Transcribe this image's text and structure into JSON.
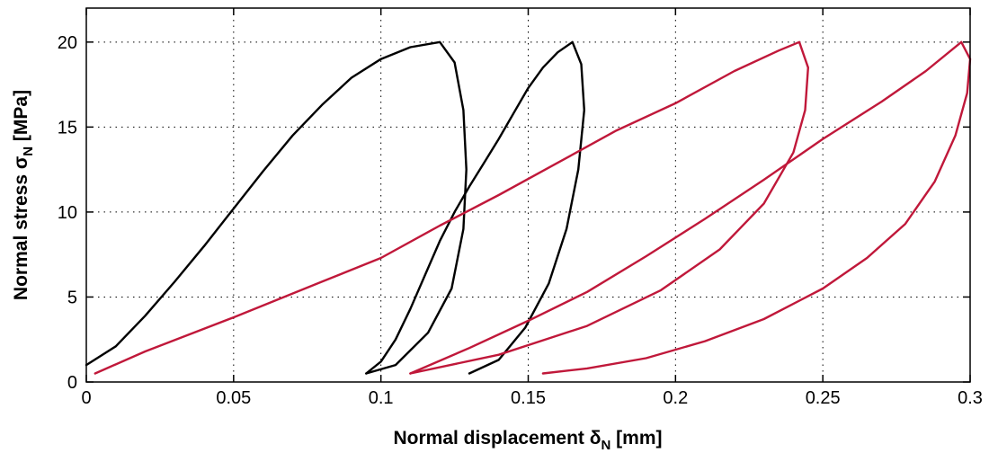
{
  "chart_data": {
    "type": "line",
    "xlabel": {
      "main": "Normal displacement δ",
      "sub": "N",
      "unit": " [mm]"
    },
    "ylabel": {
      "main": "Normal stress σ",
      "sub": "N",
      "unit": " [MPa]"
    },
    "xlim": [
      0,
      0.3
    ],
    "ylim": [
      0,
      22
    ],
    "xticks": [
      0,
      0.05,
      0.1,
      0.15,
      0.2,
      0.25,
      0.3
    ],
    "xtick_labels": [
      "0",
      "0.05",
      "0.1",
      "0.15",
      "0.2",
      "0.25",
      "0.3"
    ],
    "yticks": [
      0,
      5,
      10,
      15,
      20
    ],
    "ytick_labels": [
      "0",
      "5",
      "10",
      "15",
      "20"
    ],
    "grid": true,
    "colors": {
      "black": "#000000",
      "red": "#c0183a"
    },
    "series": [
      {
        "color": "#000000",
        "x": [
          0.0,
          0.01,
          0.02,
          0.03,
          0.04,
          0.05,
          0.06,
          0.07,
          0.08,
          0.09,
          0.1,
          0.11,
          0.12,
          0.125,
          0.128,
          0.129,
          0.128,
          0.124,
          0.116,
          0.105,
          0.095
        ],
        "y": [
          1.0,
          2.1,
          3.9,
          5.9,
          8.0,
          10.2,
          12.4,
          14.5,
          16.3,
          17.9,
          19.0,
          19.7,
          20.0,
          18.8,
          16.0,
          12.5,
          9.0,
          5.5,
          2.9,
          1.0,
          0.5
        ]
      },
      {
        "color": "#000000",
        "x": [
          0.095,
          0.1,
          0.105,
          0.11,
          0.115,
          0.12,
          0.125,
          0.13,
          0.135,
          0.14,
          0.145,
          0.15,
          0.155,
          0.16,
          0.165,
          0.168,
          0.169,
          0.167,
          0.163,
          0.157,
          0.149,
          0.14,
          0.13
        ],
        "y": [
          0.5,
          1.2,
          2.5,
          4.3,
          6.3,
          8.3,
          10.0,
          11.5,
          12.9,
          14.3,
          15.8,
          17.3,
          18.5,
          19.4,
          20.0,
          18.7,
          16.0,
          12.5,
          9.0,
          5.8,
          3.2,
          1.3,
          0.5
        ]
      },
      {
        "color": "#c0183a",
        "x": [
          0.003,
          0.02,
          0.05,
          0.08,
          0.1,
          0.12,
          0.14,
          0.16,
          0.18,
          0.2,
          0.22,
          0.235,
          0.242,
          0.245,
          0.244,
          0.24,
          0.23,
          0.215,
          0.195,
          0.17,
          0.14,
          0.11
        ],
        "y": [
          0.5,
          1.8,
          3.8,
          5.9,
          7.3,
          9.2,
          11.0,
          12.9,
          14.8,
          16.4,
          18.3,
          19.5,
          20.0,
          18.5,
          16.0,
          13.5,
          10.5,
          7.8,
          5.4,
          3.3,
          1.6,
          0.5
        ]
      },
      {
        "color": "#c0183a",
        "x": [
          0.11,
          0.13,
          0.15,
          0.17,
          0.19,
          0.21,
          0.23,
          0.25,
          0.27,
          0.285,
          0.297,
          0.3,
          0.299,
          0.295,
          0.288,
          0.278,
          0.265,
          0.25,
          0.23,
          0.21,
          0.19,
          0.17,
          0.155
        ],
        "y": [
          0.5,
          2.0,
          3.6,
          5.3,
          7.4,
          9.6,
          11.9,
          14.3,
          16.5,
          18.3,
          20.0,
          19.0,
          17.0,
          14.5,
          11.8,
          9.3,
          7.3,
          5.5,
          3.7,
          2.4,
          1.4,
          0.8,
          0.5
        ]
      }
    ]
  }
}
